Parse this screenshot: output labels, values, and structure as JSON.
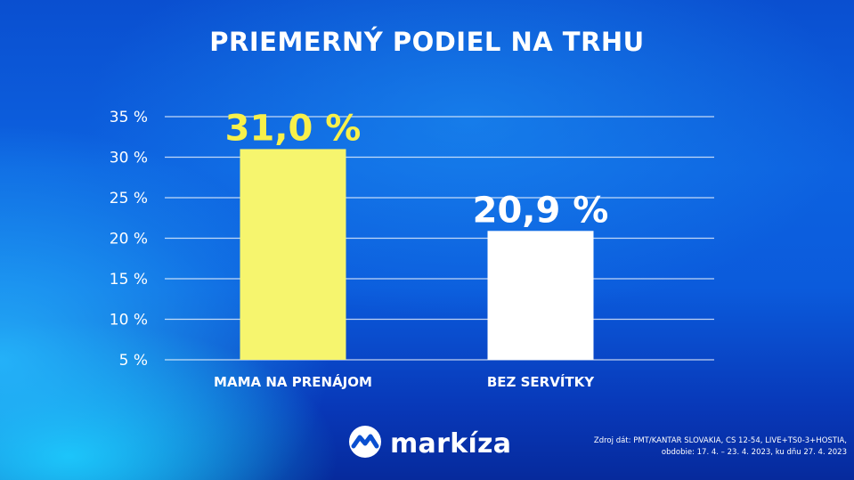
{
  "title": "PRIEMERNÝ PODIEL NA TRHU",
  "chart_data": {
    "type": "bar",
    "categories": [
      "MAMA NA PRENÁJOM",
      "BEZ SERVÍTKY"
    ],
    "values": [
      31.0,
      20.9
    ],
    "data_labels": [
      "31,0 %",
      "20,9 %"
    ],
    "bar_colors": [
      "#f6f56e",
      "#ffffff"
    ],
    "label_colors": [
      "#f8f04a",
      "#ffffff"
    ],
    "y_ticks": [
      {
        "value": 5,
        "label": "5 %"
      },
      {
        "value": 10,
        "label": "10 %"
      },
      {
        "value": 15,
        "label": "15 %"
      },
      {
        "value": 20,
        "label": "20 %"
      },
      {
        "value": 25,
        "label": "25 %"
      },
      {
        "value": 30,
        "label": "30 %"
      },
      {
        "value": 35,
        "label": "35 %"
      }
    ],
    "ylim": [
      5,
      35
    ],
    "grid": true,
    "xlabel": "",
    "ylabel": ""
  },
  "brand": {
    "name": "markíza",
    "logo_icon": "markiza-logo-icon"
  },
  "source": {
    "line1": "Zdroj dát: PMT/KANTAR SLOVAKIA, CS 12-54, LIVE+TS0-3+HOSTIA,",
    "line2": "obdobie: 17. 4. – 23. 4. 2023, ku dňu 27. 4. 2023"
  }
}
